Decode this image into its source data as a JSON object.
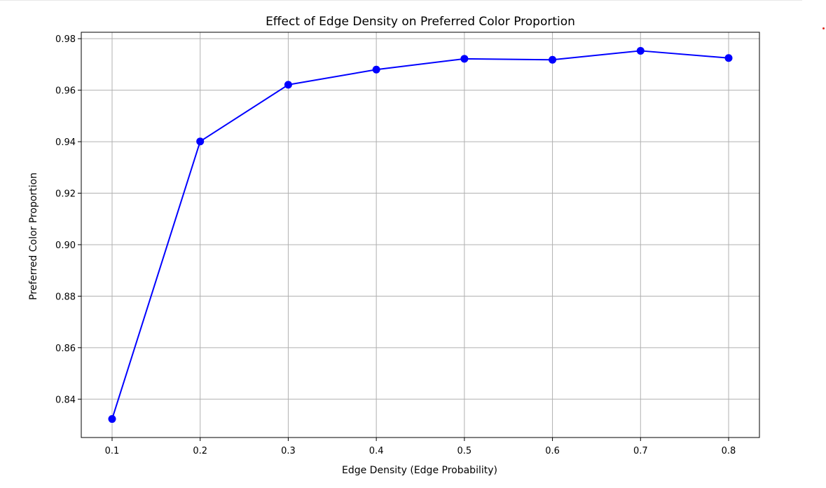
{
  "chart_data": {
    "type": "line",
    "title": "Effect of Edge Density on Preferred Color Proportion",
    "xlabel": "Edge Density (Edge Probability)",
    "ylabel": "Preferred Color Proportion",
    "x": [
      0.1,
      0.2,
      0.3,
      0.4,
      0.5,
      0.6,
      0.7,
      0.8
    ],
    "series": [
      {
        "values": [
          0.8323,
          0.9401,
          0.9621,
          0.968,
          0.9722,
          0.9718,
          0.9753,
          0.9725
        ],
        "color": "#0000ff",
        "marker": "circle"
      }
    ],
    "xticks": [
      "0.1",
      "0.2",
      "0.3",
      "0.4",
      "0.5",
      "0.6",
      "0.7",
      "0.8"
    ],
    "xtick_values": [
      0.1,
      0.2,
      0.3,
      0.4,
      0.5,
      0.6,
      0.7,
      0.8
    ],
    "yticks": [
      "0.84",
      "0.86",
      "0.88",
      "0.90",
      "0.92",
      "0.94",
      "0.96",
      "0.98"
    ],
    "ytick_values": [
      0.84,
      0.86,
      0.88,
      0.9,
      0.92,
      0.94,
      0.96,
      0.98
    ],
    "xlim": [
      0.065,
      0.835
    ],
    "ylim": [
      0.8251,
      0.9825
    ],
    "grid": true,
    "grid_color": "#b0b0b0"
  }
}
